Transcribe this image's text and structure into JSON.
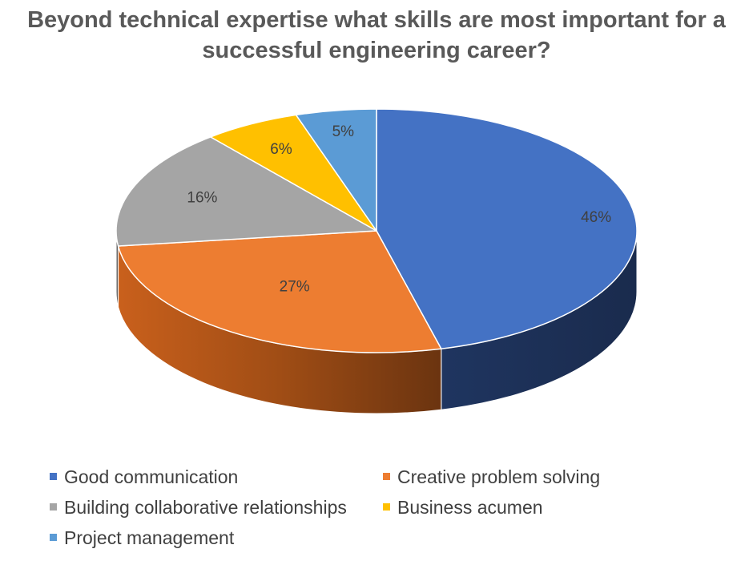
{
  "chart_data": {
    "type": "pie",
    "title": "Beyond technical expertise what skills are most important for a successful engineering career?",
    "categories": [
      "Good communication",
      "Creative problem solving",
      "Building collaborative relationships",
      "Business acumen",
      "Project management"
    ],
    "values": [
      46,
      27,
      16,
      6,
      5
    ],
    "labels": [
      "46%",
      "27%",
      "16%",
      "6%",
      "5%"
    ],
    "colors": [
      "#4472C4",
      "#ED7D31",
      "#A5A5A5",
      "#FFC000",
      "#5B9BD5"
    ],
    "style": "3d-pie",
    "legend_position": "bottom"
  }
}
